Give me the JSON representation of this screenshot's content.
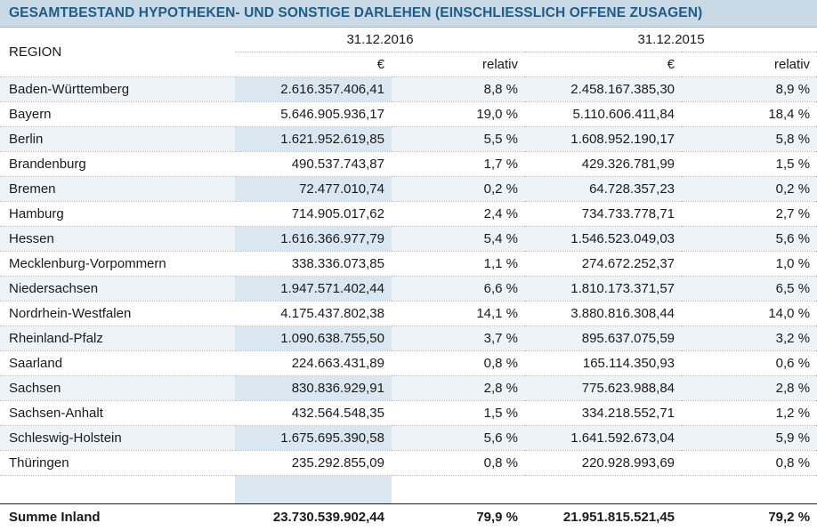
{
  "title": "GESAMTBESTAND HYPOTHEKEN- UND SONSTIGE DARLEHEN (EINSCHLIESSLICH OFFENE ZUSAGEN)",
  "headers": {
    "region": "REGION",
    "date_2016": "31.12.2016",
    "date_2015": "31.12.2015",
    "eur_2016": "€",
    "rel_2016": "relativ",
    "eur_2015": "€",
    "rel_2015": "relativ"
  },
  "rows": [
    {
      "region": "Baden-Württemberg",
      "eur_2016": "2.616.357.406,41",
      "rel_2016": "8,8 %",
      "eur_2015": "2.458.167.385,30",
      "rel_2015": "8,9 %"
    },
    {
      "region": "Bayern",
      "eur_2016": "5.646.905.936,17",
      "rel_2016": "19,0 %",
      "eur_2015": "5.110.606.411,84",
      "rel_2015": "18,4 %"
    },
    {
      "region": "Berlin",
      "eur_2016": "1.621.952.619,85",
      "rel_2016": "5,5 %",
      "eur_2015": "1.608.952.190,17",
      "rel_2015": "5,8 %"
    },
    {
      "region": "Brandenburg",
      "eur_2016": "490.537.743,87",
      "rel_2016": "1,7 %",
      "eur_2015": "429.326.781,99",
      "rel_2015": "1,5 %"
    },
    {
      "region": "Bremen",
      "eur_2016": "72.477.010,74",
      "rel_2016": "0,2 %",
      "eur_2015": "64.728.357,23",
      "rel_2015": "0,2 %"
    },
    {
      "region": "Hamburg",
      "eur_2016": "714.905.017,62",
      "rel_2016": "2,4 %",
      "eur_2015": "734.733.778,71",
      "rel_2015": "2,7 %"
    },
    {
      "region": "Hessen",
      "eur_2016": "1.616.366.977,79",
      "rel_2016": "5,4 %",
      "eur_2015": "1.546.523.049,03",
      "rel_2015": "5,6 %"
    },
    {
      "region": "Mecklenburg-Vorpommern",
      "eur_2016": "338.336.073,85",
      "rel_2016": "1,1 %",
      "eur_2015": "274.672.252,37",
      "rel_2015": "1,0 %"
    },
    {
      "region": "Niedersachsen",
      "eur_2016": "1.947.571.402,44",
      "rel_2016": "6,6 %",
      "eur_2015": "1.810.173.371,57",
      "rel_2015": "6,5 %"
    },
    {
      "region": "Nordrhein-Westfalen",
      "eur_2016": "4.175.437.802,38",
      "rel_2016": "14,1 %",
      "eur_2015": "3.880.816.308,44",
      "rel_2015": "14,0 %"
    },
    {
      "region": "Rheinland-Pfalz",
      "eur_2016": "1.090.638.755,50",
      "rel_2016": "3,7 %",
      "eur_2015": "895.637.075,59",
      "rel_2015": "3,2 %"
    },
    {
      "region": "Saarland",
      "eur_2016": "224.663.431,89",
      "rel_2016": "0,8 %",
      "eur_2015": "165.114.350,93",
      "rel_2015": "0,6 %"
    },
    {
      "region": "Sachsen",
      "eur_2016": "830.836.929,91",
      "rel_2016": "2,8 %",
      "eur_2015": "775.623.988,84",
      "rel_2015": "2,8 %"
    },
    {
      "region": "Sachsen-Anhalt",
      "eur_2016": "432.564.548,35",
      "rel_2016": "1,5 %",
      "eur_2015": "334.218.552,71",
      "rel_2015": "1,2 %"
    },
    {
      "region": "Schleswig-Holstein",
      "eur_2016": "1.675.695.390,58",
      "rel_2016": "5,6 %",
      "eur_2015": "1.641.592.673,04",
      "rel_2015": "5,9 %"
    },
    {
      "region": "Thüringen",
      "eur_2016": "235.292.855,09",
      "rel_2016": "0,8 %",
      "eur_2015": "220.928.993,69",
      "rel_2015": "0,8 %"
    }
  ],
  "total": {
    "region": "Summe Inland",
    "eur_2016": "23.730.539.902,44",
    "rel_2016": "79,9 %",
    "eur_2015": "21.951.815.521,45",
    "rel_2015": "79,2 %"
  },
  "colors": {
    "title_bg": "#c9d9e6",
    "title_text": "#1f5d86",
    "row_alt": "#eef3f8",
    "col_highlight": "#dbe7f0"
  }
}
